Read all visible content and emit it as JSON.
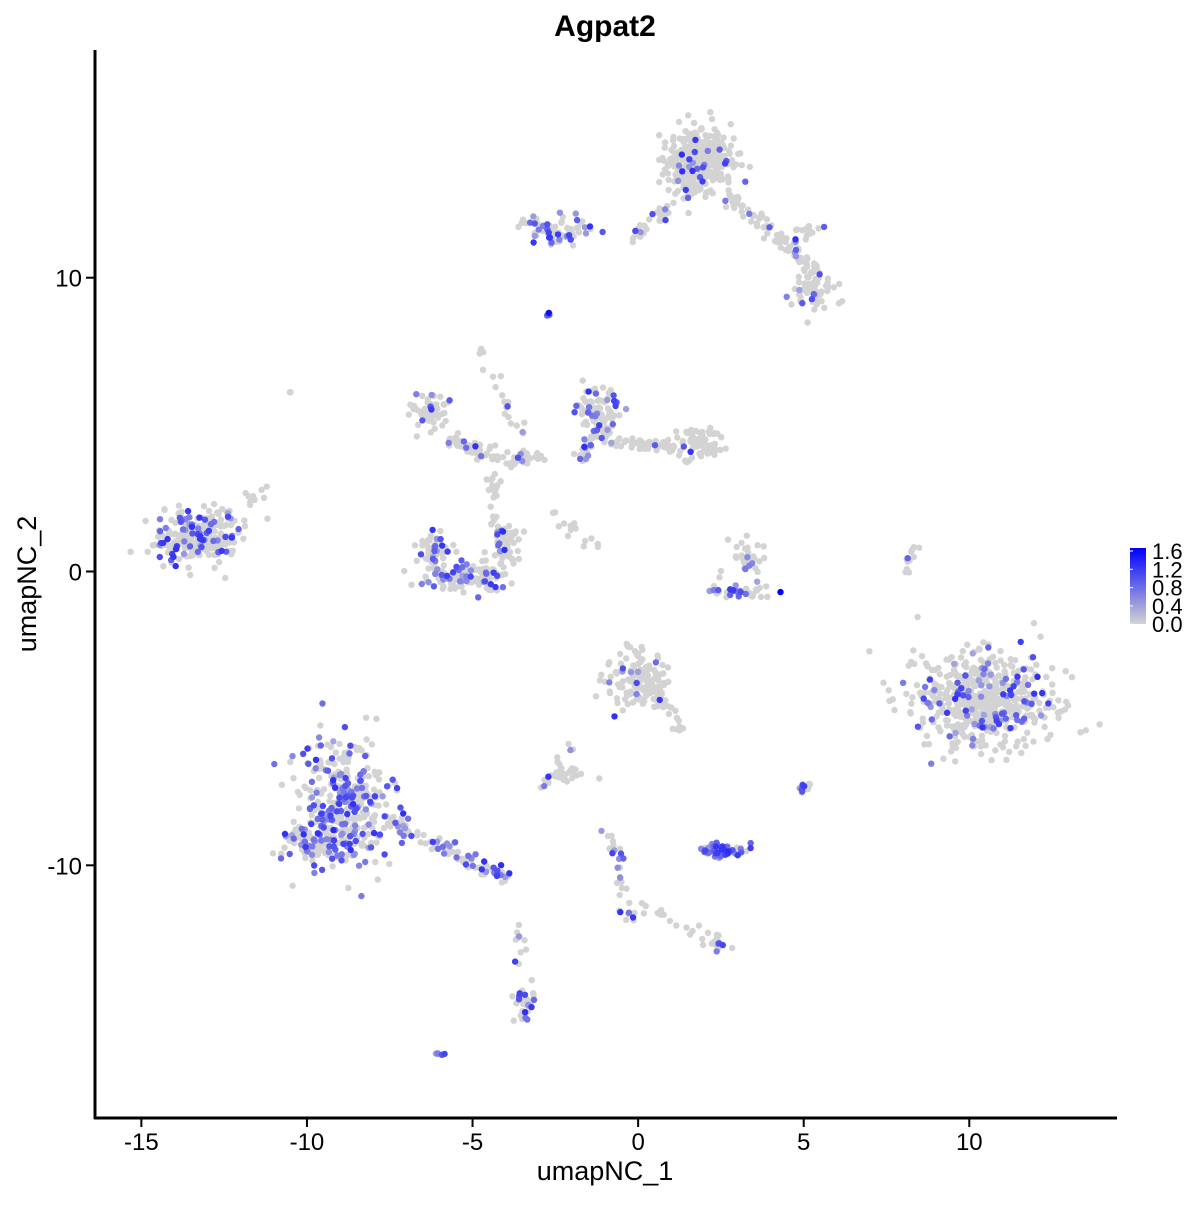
{
  "chart_data": {
    "type": "scatter",
    "title": "Agpat2",
    "xlabel": "umapNC_1",
    "ylabel": "umapNC_2",
    "xlim": [
      -16.4,
      14.46
    ],
    "ylim": [
      -18.6,
      17.75
    ],
    "xticks": [
      -15,
      -10,
      -5,
      0,
      5,
      10
    ],
    "yticks": [
      -10,
      0,
      10
    ],
    "grid": false,
    "colors": {
      "low": "#d3d3d3",
      "high": "#0000ff"
    },
    "legend": {
      "placement": "right",
      "ticks": [
        "1.6",
        "1.2",
        "0.8",
        "0.4",
        "0.0"
      ],
      "range": [
        0,
        1.6
      ]
    },
    "clusters": [
      {
        "c": [
          1.8,
          14.0
        ],
        "s": [
          0.6,
          0.75
        ],
        "n": 350,
        "p": 0.05
      },
      {
        "c": [
          5.3,
          9.6
        ],
        "s": [
          0.4,
          0.35
        ],
        "n": 80,
        "p": 0.08
      },
      {
        "c": [
          -2.5,
          11.6
        ],
        "s": [
          0.7,
          0.3
        ],
        "n": 70,
        "p": 0.3
      },
      {
        "c": [
          -13.3,
          1.2
        ],
        "s": [
          0.75,
          0.6
        ],
        "n": 260,
        "p": 0.2
      },
      {
        "c": [
          -6.3,
          5.5
        ],
        "s": [
          0.35,
          0.4
        ],
        "n": 60,
        "p": 0.05
      },
      {
        "c": [
          -5.2,
          -0.2
        ],
        "s": [
          0.7,
          0.3
        ],
        "n": 120,
        "p": 0.25
      },
      {
        "c": [
          -4.0,
          0.9
        ],
        "s": [
          0.3,
          0.5
        ],
        "n": 60,
        "p": 0.15
      },
      {
        "c": [
          -6.2,
          0.8
        ],
        "s": [
          0.3,
          0.4
        ],
        "n": 50,
        "p": 0.15
      },
      {
        "c": [
          -1.2,
          5.5
        ],
        "s": [
          0.4,
          0.5
        ],
        "n": 80,
        "p": 0.3
      },
      {
        "c": [
          1.7,
          4.3
        ],
        "s": [
          0.45,
          0.35
        ],
        "n": 80,
        "p": 0.05
      },
      {
        "c": [
          3.1,
          -0.7
        ],
        "s": [
          0.6,
          0.2
        ],
        "n": 40,
        "p": 0.3
      },
      {
        "c": [
          3.3,
          0.5
        ],
        "s": [
          0.3,
          0.4
        ],
        "n": 30,
        "p": 0.15
      },
      {
        "c": [
          10.5,
          -4.4
        ],
        "s": [
          1.3,
          1.0
        ],
        "n": 600,
        "p": 0.1
      },
      {
        "c": [
          -8.8,
          -7.8
        ],
        "s": [
          0.9,
          1.3
        ],
        "n": 350,
        "p": 0.35
      },
      {
        "c": [
          -9.5,
          -9.2
        ],
        "s": [
          0.7,
          0.5
        ],
        "n": 100,
        "p": 0.35
      },
      {
        "c": [
          0,
          -3.8
        ],
        "s": [
          0.6,
          0.6
        ],
        "n": 120,
        "p": 0.05
      },
      {
        "c": [
          2.4,
          -9.5
        ],
        "s": [
          0.5,
          0.15
        ],
        "n": 60,
        "p": 0.8
      },
      {
        "c": [
          -2.2,
          -6.9
        ],
        "s": [
          0.3,
          0.2
        ],
        "n": 25,
        "p": 0.05
      },
      {
        "c": [
          -3.4,
          -14.7
        ],
        "s": [
          0.2,
          0.4
        ],
        "n": 30,
        "p": 0.4
      },
      {
        "c": [
          2.4,
          -12.6
        ],
        "s": [
          0.2,
          0.15
        ],
        "n": 15,
        "p": 0.3
      },
      {
        "c": [
          5.0,
          -7.3
        ],
        "s": [
          0.15,
          0.15
        ],
        "n": 10,
        "p": 0.3
      },
      {
        "c": [
          -6.0,
          -16.4
        ],
        "s": [
          0.1,
          0.05
        ],
        "n": 5,
        "p": 1
      },
      {
        "c": [
          -2.7,
          8.8
        ],
        "s": [
          0.05,
          0.05
        ],
        "n": 3,
        "p": 1
      },
      {
        "c": [
          -10.5,
          6.1
        ],
        "s": [
          0.05,
          0.05
        ],
        "n": 2,
        "p": 0
      }
    ],
    "strands": [
      {
        "from": [
          2.8,
          12.8
        ],
        "to": [
          5.3,
          10.2
        ],
        "n": 80,
        "p": 0.05
      },
      {
        "from": [
          -0.3,
          11.3
        ],
        "to": [
          1.0,
          12.4
        ],
        "n": 30,
        "p": 0.05
      },
      {
        "from": [
          4.5,
          11.2
        ],
        "to": [
          5.5,
          11.8
        ],
        "n": 20,
        "p": 0.05
      },
      {
        "from": [
          -5.7,
          4.5
        ],
        "to": [
          -4.0,
          3.8
        ],
        "n": 60,
        "p": 0.1
      },
      {
        "from": [
          -4.0,
          3.8
        ],
        "to": [
          -2.9,
          3.9
        ],
        "n": 30,
        "p": 0.05
      },
      {
        "from": [
          -4.3,
          3.5
        ],
        "to": [
          -4.4,
          1.5
        ],
        "n": 20,
        "p": 0.05
      },
      {
        "from": [
          -4.8,
          7.5
        ],
        "to": [
          -3.5,
          4.5
        ],
        "n": 20,
        "p": 0.15
      },
      {
        "from": [
          -2.6,
          2.0
        ],
        "to": [
          -1.2,
          0.7
        ],
        "n": 15,
        "p": 0
      },
      {
        "from": [
          -1.0,
          4.5
        ],
        "to": [
          1.2,
          4.2
        ],
        "n": 60,
        "p": 0.05
      },
      {
        "from": [
          -1.8,
          3.8
        ],
        "to": [
          -1.0,
          5.0
        ],
        "n": 30,
        "p": 0.3
      },
      {
        "from": [
          -7.5,
          -8.5
        ],
        "to": [
          -4.0,
          -10.4
        ],
        "n": 90,
        "p": 0.3
      },
      {
        "from": [
          -3.1,
          -7.5
        ],
        "to": [
          -1.7,
          -5.5
        ],
        "n": 12,
        "p": 0.1
      },
      {
        "from": [
          0.5,
          -4.0
        ],
        "to": [
          1.2,
          -5.5
        ],
        "n": 30,
        "p": 0.05
      },
      {
        "from": [
          -0.8,
          -9.0
        ],
        "to": [
          -0.2,
          -12.0
        ],
        "n": 30,
        "p": 0.4
      },
      {
        "from": [
          0,
          -11.5
        ],
        "to": [
          2.3,
          -12.4
        ],
        "n": 15,
        "p": 0.1
      },
      {
        "from": [
          8.0,
          -0.5
        ],
        "to": [
          8.3,
          0.9
        ],
        "n": 12,
        "p": 0.1
      },
      {
        "from": [
          -3.6,
          -12.0
        ],
        "to": [
          -3.5,
          -14.0
        ],
        "n": 10,
        "p": 0.2
      },
      {
        "from": [
          -11.7,
          2.4
        ],
        "to": [
          -11.4,
          2.8
        ],
        "n": 10,
        "p": 0
      }
    ]
  }
}
